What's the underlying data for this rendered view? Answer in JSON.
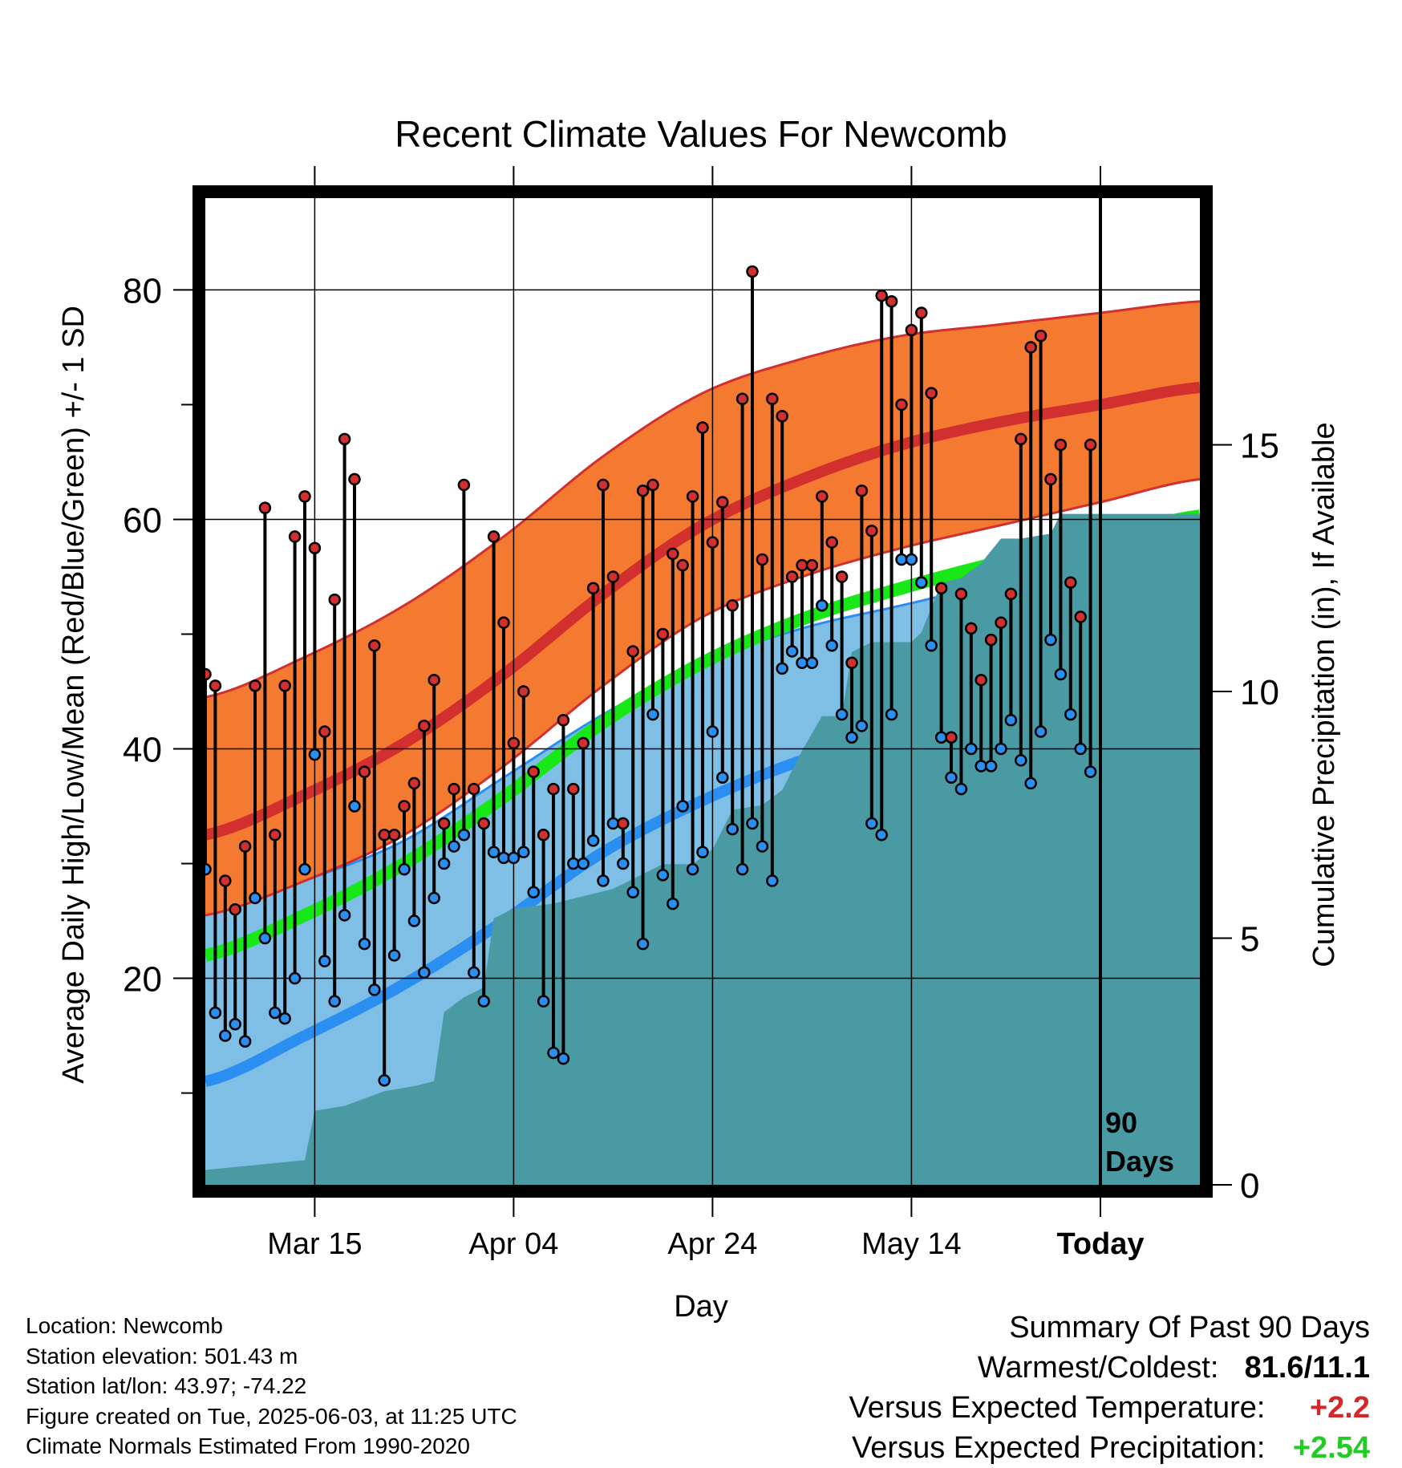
{
  "title": "Recent Climate Values For Newcomb",
  "ylabel_left": "Average Daily High/Low/Mean (Red/Blue/Green) +/- 1 SD",
  "ylabel_right": "Cumulative Precipitation (in), If Available",
  "xlabel": "Day",
  "period_label_line1": "90",
  "period_label_line2": "Days",
  "info": {
    "location": "Location: Newcomb",
    "elevation": "Station elevation: 501.43 m",
    "latlon": "Station lat/lon: 43.97; -74.22",
    "created": "Figure created on Tue, 2025-06-03, at 11:25 UTC",
    "normals": "Climate Normals Estimated From 1990-2020"
  },
  "summary": {
    "heading": "Summary Of Past 90 Days",
    "warmest_label": "Warmest/Coldest:",
    "warmest_value": "81.6/11.1",
    "temp_label": "Versus Expected Temperature:",
    "temp_value": "+2.2",
    "precip_label": "Versus Expected Precipitation:",
    "precip_value": "+2.54",
    "temp_color": "#d62728",
    "precip_color": "#22cc22"
  },
  "chart_data": {
    "type": "line",
    "x_start": "2025-03-04",
    "x_end": "2025-06-12",
    "today": "2025-06-02",
    "x_ticks": [
      {
        "date": "2025-03-15",
        "label": "Mar 15"
      },
      {
        "date": "2025-04-04",
        "label": "Apr 04"
      },
      {
        "date": "2025-04-24",
        "label": "Apr 24"
      },
      {
        "date": "2025-05-14",
        "label": "May 14"
      },
      {
        "date": "2025-06-02",
        "label": "Today"
      }
    ],
    "ylim": [
      2,
      88
    ],
    "y_ticks": [
      20,
      40,
      60,
      80
    ],
    "y_minor_ticks": [
      10,
      30,
      50,
      70
    ],
    "y2lim": [
      0,
      20
    ],
    "y2_ticks": [
      0,
      5,
      10,
      15
    ],
    "grid": true,
    "colors": {
      "high_band": "#f47a32",
      "high_band_edge": "#d22f2f",
      "high_mean": "#d22f2f",
      "low_band": "#7fbfe6",
      "low_band_edge": "#2a8ff0",
      "low_mean": "#2a8ff0",
      "mean_line": "#18e818",
      "precip": "#4a9aa3",
      "high_dot": "#d22f2f",
      "low_dot": "#2a8ff0"
    },
    "normals": {
      "days": [
        0,
        10,
        20,
        30,
        40,
        50,
        60,
        70,
        80,
        90,
        100
      ],
      "high_mean": [
        32.5,
        36.0,
        40.5,
        46.5,
        53.5,
        59.5,
        63.5,
        66.5,
        68.5,
        70.0,
        71.5
      ],
      "high_upper": [
        44.5,
        48.0,
        52.5,
        58.5,
        65.5,
        71.0,
        74.0,
        76.0,
        77.0,
        78.0,
        79.0
      ],
      "high_lower": [
        25.5,
        28.5,
        32.5,
        38.5,
        45.5,
        51.5,
        55.0,
        57.5,
        59.5,
        61.5,
        63.5
      ],
      "low_mean": [
        11.0,
        15.0,
        19.5,
        25.0,
        31.0,
        35.5,
        39.0,
        41.5,
        44.0,
        46.5,
        49.5
      ],
      "low_upper": [
        25.5,
        28.5,
        32.0,
        37.5,
        43.0,
        47.5,
        50.5,
        52.5,
        54.5,
        56.0,
        57.0
      ],
      "low_lower": [
        -3.0,
        2.0,
        7.0,
        12.5,
        19.0,
        24.5,
        28.0,
        31.0,
        34.0,
        37.5,
        43.0
      ],
      "mean": [
        22.0,
        25.5,
        30.0,
        35.8,
        42.3,
        47.5,
        51.3,
        54.0,
        56.3,
        58.3,
        60.3
      ]
    },
    "daily": [
      {
        "day": 0,
        "high": 46.5,
        "low": 29.5
      },
      {
        "day": 1,
        "high": 45.5,
        "low": 17.0
      },
      {
        "day": 2,
        "high": 28.5,
        "low": 15.0
      },
      {
        "day": 3,
        "high": 26.0,
        "low": 16.0
      },
      {
        "day": 4,
        "high": 31.5,
        "low": 14.5
      },
      {
        "day": 5,
        "high": 45.5,
        "low": 27.0
      },
      {
        "day": 6,
        "high": 61.0,
        "low": 23.5
      },
      {
        "day": 7,
        "high": 32.5,
        "low": 17.0
      },
      {
        "day": 8,
        "high": 45.5,
        "low": 16.5
      },
      {
        "day": 9,
        "high": 58.5,
        "low": 20.0
      },
      {
        "day": 10,
        "high": 62.0,
        "low": 29.5
      },
      {
        "day": 11,
        "high": 57.5,
        "low": 39.5
      },
      {
        "day": 12,
        "high": 41.5,
        "low": 21.5
      },
      {
        "day": 13,
        "high": 53.0,
        "low": 18.0
      },
      {
        "day": 14,
        "high": 67.0,
        "low": 25.5
      },
      {
        "day": 15,
        "high": 63.5,
        "low": 35.0
      },
      {
        "day": 16,
        "high": 38.0,
        "low": 23.0
      },
      {
        "day": 17,
        "high": 49.0,
        "low": 19.0
      },
      {
        "day": 18,
        "high": 32.5,
        "low": 11.1
      },
      {
        "day": 19,
        "high": 32.5,
        "low": 22.0
      },
      {
        "day": 20,
        "high": 35.0,
        "low": 29.5
      },
      {
        "day": 21,
        "high": 37.0,
        "low": 25.0
      },
      {
        "day": 22,
        "high": 42.0,
        "low": 20.5
      },
      {
        "day": 23,
        "high": 46.0,
        "low": 27.0
      },
      {
        "day": 24,
        "high": 33.5,
        "low": 30.0
      },
      {
        "day": 25,
        "high": 36.5,
        "low": 31.5
      },
      {
        "day": 26,
        "high": 63.0,
        "low": 32.5
      },
      {
        "day": 27,
        "high": 36.5,
        "low": 20.5
      },
      {
        "day": 28,
        "high": 33.5,
        "low": 18.0
      },
      {
        "day": 29,
        "high": 58.5,
        "low": 31.0
      },
      {
        "day": 30,
        "high": 51.0,
        "low": 30.5
      },
      {
        "day": 31,
        "high": 40.5,
        "low": 30.5
      },
      {
        "day": 32,
        "high": 45.0,
        "low": 31.0
      },
      {
        "day": 33,
        "high": 38.0,
        "low": 27.5
      },
      {
        "day": 34,
        "high": 32.5,
        "low": 18.0
      },
      {
        "day": 35,
        "high": 36.5,
        "low": 13.5
      },
      {
        "day": 36,
        "high": 42.5,
        "low": 13.0
      },
      {
        "day": 37,
        "high": 36.5,
        "low": 30.0
      },
      {
        "day": 38,
        "high": 40.5,
        "low": 30.0
      },
      {
        "day": 39,
        "high": 54.0,
        "low": 32.0
      },
      {
        "day": 40,
        "high": 63.0,
        "low": 28.5
      },
      {
        "day": 41,
        "high": 55.0,
        "low": 33.5
      },
      {
        "day": 42,
        "high": 33.5,
        "low": 30.0
      },
      {
        "day": 43,
        "high": 48.5,
        "low": 27.5
      },
      {
        "day": 44,
        "high": 62.5,
        "low": 23.0
      },
      {
        "day": 45,
        "high": 63.0,
        "low": 43.0
      },
      {
        "day": 46,
        "high": 50.0,
        "low": 29.0
      },
      {
        "day": 47,
        "high": 57.0,
        "low": 26.5
      },
      {
        "day": 48,
        "high": 56.0,
        "low": 35.0
      },
      {
        "day": 49,
        "high": 62.0,
        "low": 29.5
      },
      {
        "day": 50,
        "high": 68.0,
        "low": 31.0
      },
      {
        "day": 51,
        "high": 58.0,
        "low": 41.5
      },
      {
        "day": 52,
        "high": 61.5,
        "low": 37.5
      },
      {
        "day": 53,
        "high": 52.5,
        "low": 33.0
      },
      {
        "day": 54,
        "high": 70.5,
        "low": 29.5
      },
      {
        "day": 55,
        "high": 81.6,
        "low": 33.5
      },
      {
        "day": 56,
        "high": 56.5,
        "low": 31.5
      },
      {
        "day": 57,
        "high": 70.5,
        "low": 28.5
      },
      {
        "day": 58,
        "high": 69.0,
        "low": 47.0
      },
      {
        "day": 59,
        "high": 55.0,
        "low": 48.5
      },
      {
        "day": 60,
        "high": 56.0,
        "low": 47.5
      },
      {
        "day": 61,
        "high": 56.0,
        "low": 47.5
      },
      {
        "day": 62,
        "high": 62.0,
        "low": 52.5
      },
      {
        "day": 63,
        "high": 58.0,
        "low": 49.0
      },
      {
        "day": 64,
        "high": 55.0,
        "low": 43.0
      },
      {
        "day": 65,
        "high": 47.5,
        "low": 41.0
      },
      {
        "day": 66,
        "high": 62.5,
        "low": 42.0
      },
      {
        "day": 67,
        "high": 59.0,
        "low": 33.5
      },
      {
        "day": 68,
        "high": 79.5,
        "low": 32.5
      },
      {
        "day": 69,
        "high": 79.0,
        "low": 43.0
      },
      {
        "day": 70,
        "high": 70.0,
        "low": 56.5
      },
      {
        "day": 71,
        "high": 76.5,
        "low": 56.5
      },
      {
        "day": 72,
        "high": 78.0,
        "low": 54.5
      },
      {
        "day": 73,
        "high": 71.0,
        "low": 49.0
      },
      {
        "day": 74,
        "high": 54.0,
        "low": 41.0
      },
      {
        "day": 75,
        "high": 41.0,
        "low": 37.5
      },
      {
        "day": 76,
        "high": 53.5,
        "low": 36.5
      },
      {
        "day": 77,
        "high": 50.5,
        "low": 40.0
      },
      {
        "day": 78,
        "high": 46.0,
        "low": 38.5
      },
      {
        "day": 79,
        "high": 49.5,
        "low": 38.5
      },
      {
        "day": 80,
        "high": 51.0,
        "low": 40.0
      },
      {
        "day": 81,
        "high": 53.5,
        "low": 42.5
      },
      {
        "day": 82,
        "high": 67.0,
        "low": 39.0
      },
      {
        "day": 83,
        "high": 75.0,
        "low": 37.0
      },
      {
        "day": 84,
        "high": 76.0,
        "low": 41.5
      },
      {
        "day": 85,
        "high": 63.5,
        "low": 49.5
      },
      {
        "day": 86,
        "high": 66.5,
        "low": 46.5
      },
      {
        "day": 87,
        "high": 54.5,
        "low": 43.0
      },
      {
        "day": 88,
        "high": 51.5,
        "low": 40.0
      },
      {
        "day": 89,
        "high": 66.5,
        "low": 38.0
      }
    ],
    "precip_cumulative": [
      [
        0,
        0.3
      ],
      [
        5,
        0.4
      ],
      [
        10,
        0.5
      ],
      [
        11,
        1.5
      ],
      [
        14,
        1.6
      ],
      [
        18,
        1.9
      ],
      [
        21,
        2.0
      ],
      [
        23,
        2.1
      ],
      [
        24,
        3.5
      ],
      [
        26,
        3.8
      ],
      [
        28,
        4.0
      ],
      [
        29,
        5.4
      ],
      [
        31,
        5.6
      ],
      [
        35,
        5.7
      ],
      [
        37,
        5.8
      ],
      [
        41,
        6.0
      ],
      [
        44,
        6.3
      ],
      [
        46,
        6.5
      ],
      [
        49,
        6.5
      ],
      [
        51,
        6.8
      ],
      [
        53,
        7.6
      ],
      [
        56,
        7.7
      ],
      [
        58,
        8.0
      ],
      [
        60,
        8.8
      ],
      [
        62,
        9.5
      ],
      [
        64,
        9.5
      ],
      [
        65,
        10.8
      ],
      [
        67,
        11.0
      ],
      [
        71,
        11.0
      ],
      [
        72,
        11.2
      ],
      [
        74,
        12.2
      ],
      [
        76,
        12.3
      ],
      [
        78,
        12.6
      ],
      [
        80,
        13.1
      ],
      [
        82,
        13.1
      ],
      [
        85,
        13.2
      ],
      [
        86,
        13.6
      ],
      [
        90,
        13.6
      ],
      [
        100,
        13.6
      ]
    ]
  }
}
